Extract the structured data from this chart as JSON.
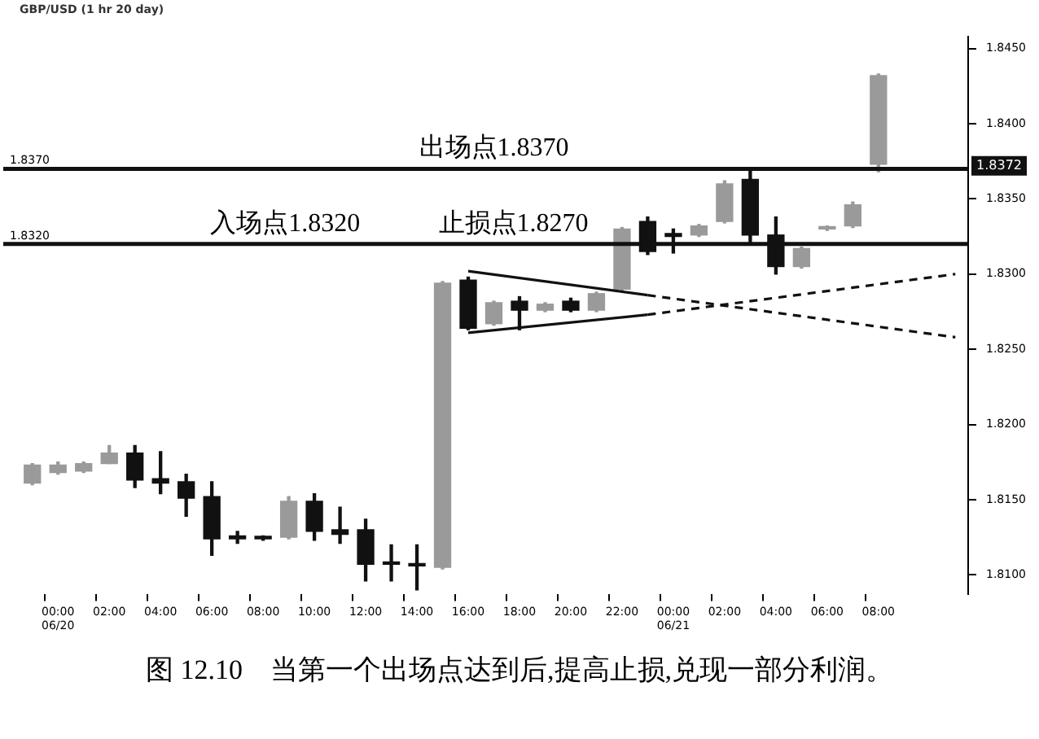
{
  "chart_data": {
    "type": "candlestick",
    "title": "GBP/USD (1 hr 20 day)",
    "categories": [
      null,
      "00:00 06/20",
      null,
      "02:00",
      null,
      "04:00",
      null,
      "06:00",
      null,
      "08:00",
      null,
      "10:00",
      null,
      "12:00",
      null,
      "14:00",
      null,
      "16:00",
      null,
      "18:00",
      null,
      "20:00",
      null,
      "22:00",
      null,
      "00:00 06/21",
      null,
      "02:00",
      null,
      "04:00",
      null,
      "06:00",
      null,
      "08:00",
      null,
      null,
      null
    ],
    "ohlc": [
      [
        1.8161,
        1.8174,
        1.816,
        1.8173
      ],
      [
        1.8168,
        1.8175,
        1.8167,
        1.8173
      ],
      [
        1.8169,
        1.8175,
        1.8168,
        1.8174
      ],
      [
        1.8174,
        1.8186,
        1.8174,
        1.8181
      ],
      [
        1.8181,
        1.8186,
        1.8158,
        1.8163
      ],
      [
        1.8164,
        1.8182,
        1.8154,
        1.8161
      ],
      [
        1.8162,
        1.8167,
        1.8139,
        1.8151
      ],
      [
        1.8152,
        1.8162,
        1.8113,
        1.8124
      ],
      [
        1.8126,
        1.8129,
        1.8121,
        1.8124
      ],
      [
        1.8125,
        1.8126,
        1.8123,
        1.8124
      ],
      [
        1.8125,
        1.8152,
        1.8124,
        1.8149
      ],
      [
        1.8149,
        1.8154,
        1.8123,
        1.8129
      ],
      [
        1.813,
        1.8145,
        1.8121,
        1.8127
      ],
      [
        1.813,
        1.8137,
        1.8096,
        1.8107
      ],
      [
        1.8108,
        1.812,
        1.8096,
        1.8107
      ],
      [
        1.8107,
        1.812,
        1.809,
        1.8106
      ],
      [
        1.8105,
        1.8295,
        1.8104,
        1.8294
      ],
      [
        1.8296,
        1.8298,
        1.8263,
        1.8264
      ],
      [
        1.8267,
        1.8282,
        1.8266,
        1.8281
      ],
      [
        1.8282,
        1.8285,
        1.8263,
        1.8276
      ],
      [
        1.8276,
        1.8281,
        1.8275,
        1.828
      ],
      [
        1.8282,
        1.8284,
        1.8275,
        1.8276
      ],
      [
        1.8276,
        1.8288,
        1.8275,
        1.8287
      ],
      [
        1.829,
        1.8331,
        1.8289,
        1.833
      ],
      [
        1.8335,
        1.8338,
        1.8313,
        1.8315
      ],
      [
        1.8327,
        1.833,
        1.8314,
        1.8325
      ],
      [
        1.8326,
        1.8333,
        1.8325,
        1.8332
      ],
      [
        1.8335,
        1.8362,
        1.8334,
        1.836
      ],
      [
        1.8363,
        1.837,
        1.832,
        1.8326
      ],
      [
        1.8326,
        1.8338,
        1.83,
        1.8305
      ],
      [
        1.8305,
        1.8318,
        1.8304,
        1.8317
      ],
      [
        1.833,
        1.8332,
        1.8329,
        1.8331
      ],
      [
        1.8332,
        1.8348,
        1.8331,
        1.8346
      ],
      [
        1.8373,
        1.8433,
        1.8368,
        1.8432
      ],
      null,
      null,
      null
    ],
    "colors": [
      "#9a9a9a",
      "#9a9a9a",
      "#9a9a9a",
      "#9a9a9a",
      "#111111",
      "#111111",
      "#111111",
      "#111111",
      "#111111",
      "#111111",
      "#9a9a9a",
      "#111111",
      "#111111",
      "#111111",
      "#111111",
      "#111111",
      "#9a9a9a",
      "#111111",
      "#9a9a9a",
      "#111111",
      "#9a9a9a",
      "#111111",
      "#9a9a9a",
      "#9a9a9a",
      "#111111",
      "#111111",
      "#9a9a9a",
      "#9a9a9a",
      "#111111",
      "#111111",
      "#9a9a9a",
      "#9a9a9a",
      "#9a9a9a",
      "#9a9a9a",
      null,
      null,
      null
    ],
    "series": [
      {
        "type": "line",
        "color": "#111111",
        "line_style": "solid",
        "values": [
          null,
          null,
          null,
          null,
          null,
          null,
          null,
          null,
          null,
          null,
          null,
          null,
          null,
          null,
          null,
          null,
          null,
          1.8302,
          null,
          null,
          null,
          null,
          null,
          null,
          1.8286,
          null,
          null,
          null,
          null,
          null,
          null,
          null,
          null,
          null,
          null,
          null,
          null
        ]
      },
      {
        "type": "line",
        "color": "#111111",
        "line_style": "dashed",
        "values": [
          null,
          null,
          null,
          null,
          null,
          null,
          null,
          null,
          null,
          null,
          null,
          null,
          null,
          null,
          null,
          null,
          null,
          null,
          null,
          null,
          null,
          null,
          null,
          null,
          1.8286,
          null,
          null,
          null,
          null,
          null,
          null,
          null,
          null,
          null,
          null,
          null,
          1.8258
        ]
      },
      {
        "type": "line",
        "color": "#111111",
        "line_style": "solid",
        "values": [
          null,
          null,
          null,
          null,
          null,
          null,
          null,
          null,
          null,
          null,
          null,
          null,
          null,
          null,
          null,
          null,
          null,
          1.8261,
          null,
          null,
          null,
          null,
          null,
          null,
          1.8273,
          null,
          null,
          null,
          null,
          null,
          null,
          null,
          null,
          null,
          null,
          null,
          null
        ]
      },
      {
        "type": "line",
        "color": "#111111",
        "line_style": "dashed",
        "values": [
          null,
          null,
          null,
          null,
          null,
          null,
          null,
          null,
          null,
          null,
          null,
          null,
          null,
          null,
          null,
          null,
          null,
          null,
          null,
          null,
          null,
          null,
          null,
          null,
          1.8273,
          null,
          null,
          null,
          null,
          null,
          null,
          null,
          null,
          null,
          null,
          null,
          1.83
        ]
      }
    ],
    "ref_lines": [
      {
        "axis": "y",
        "value": 1.837,
        "label": "出场点1.8370",
        "color": "#111111"
      },
      {
        "axis": "y",
        "value": 1.832,
        "label": "入场点1.8320",
        "color": "#111111"
      }
    ],
    "annotations": [
      "止损点1.8270",
      {
        "text": "1.8370",
        "y": 1.837
      },
      {
        "text": "1.8320",
        "y": 1.832
      },
      {
        "text": "1.8372",
        "y": 1.8372
      },
      "图 12.10　当第一个出场点达到后,提高止损,兑现一部分利润。"
    ],
    "ylim": [
      1.8087,
      1.8458
    ],
    "yticks": [
      {
        "value": 1.81,
        "label": "1.8100"
      },
      {
        "value": 1.815,
        "label": "1.8150"
      },
      {
        "value": 1.82,
        "label": "1.8200"
      },
      {
        "value": 1.825,
        "label": "1.8250"
      },
      {
        "value": 1.83,
        "label": "1.8300"
      },
      {
        "value": 1.835,
        "label": "1.8350"
      },
      {
        "value": 1.84,
        "label": "1.8400"
      },
      {
        "value": 1.845,
        "label": "1.8450"
      }
    ]
  }
}
